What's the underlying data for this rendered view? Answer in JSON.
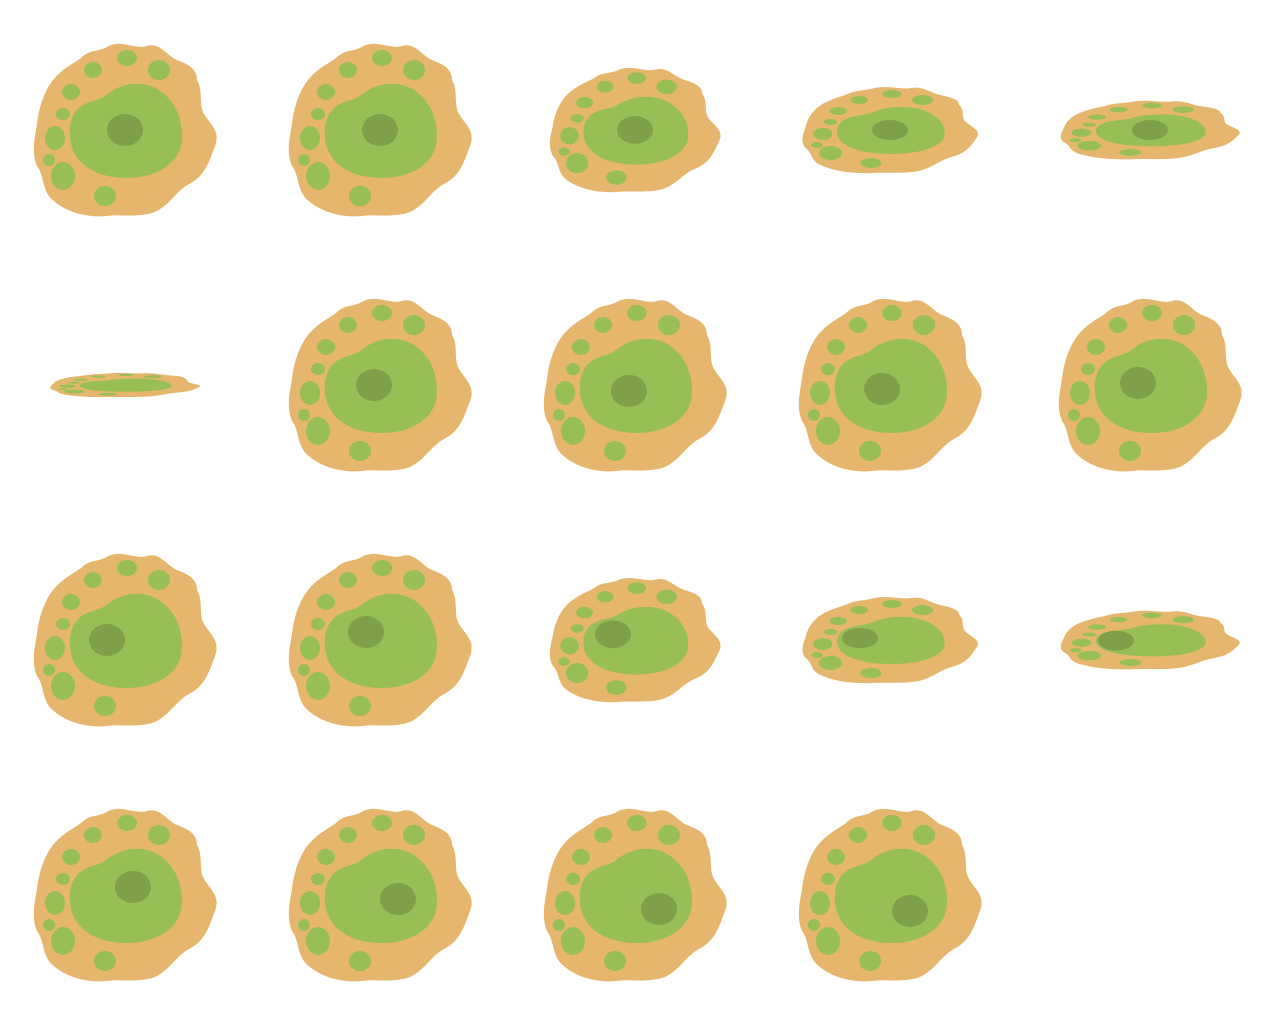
{
  "sprite_sheet": {
    "background_color": "#ffffff",
    "colors": {
      "membrane": "#e6b66e",
      "cytoplasm": "#98bf55",
      "organelle": "#98bf55",
      "nucleolus": "#7fa048"
    },
    "frame_count": 19,
    "frames": [
      {
        "row": 1,
        "shape": "round",
        "vertical_squash": 1.0,
        "nucleolus_offset": [
          0,
          0
        ]
      },
      {
        "row": 1,
        "shape": "round",
        "vertical_squash": 1.0,
        "nucleolus_offset": [
          0,
          0
        ]
      },
      {
        "row": 1,
        "shape": "flattened",
        "vertical_squash": 0.72,
        "nucleolus_offset": [
          0,
          0
        ]
      },
      {
        "row": 1,
        "shape": "flattened",
        "vertical_squash": 0.5,
        "nucleolus_offset": [
          0,
          0
        ]
      },
      {
        "row": 1,
        "shape": "flattened",
        "vertical_squash": 0.34,
        "nucleolus_offset": [
          0,
          0
        ]
      },
      {
        "row": 2,
        "shape": "flat-line",
        "vertical_squash": 0.14,
        "nucleolus_offset": [
          0,
          0
        ]
      },
      {
        "row": 2,
        "shape": "round",
        "vertical_squash": 1.0,
        "nucleolus_offset": [
          -6,
          0
        ]
      },
      {
        "row": 2,
        "shape": "round",
        "vertical_squash": 1.0,
        "nucleolus_offset": [
          -6,
          6
        ]
      },
      {
        "row": 2,
        "shape": "round",
        "vertical_squash": 1.0,
        "nucleolus_offset": [
          -8,
          4
        ]
      },
      {
        "row": 2,
        "shape": "round",
        "vertical_squash": 1.0,
        "nucleolus_offset": [
          -12,
          -2
        ]
      },
      {
        "row": 3,
        "shape": "round",
        "vertical_squash": 1.0,
        "nucleolus_offset": [
          -18,
          0
        ]
      },
      {
        "row": 3,
        "shape": "round",
        "vertical_squash": 1.0,
        "nucleolus_offset": [
          -14,
          -8
        ]
      },
      {
        "row": 3,
        "shape": "flattened",
        "vertical_squash": 0.72,
        "nucleolus_offset": [
          -22,
          -8
        ]
      },
      {
        "row": 3,
        "shape": "flattened",
        "vertical_squash": 0.5,
        "nucleolus_offset": [
          -30,
          -4
        ]
      },
      {
        "row": 3,
        "shape": "flattened",
        "vertical_squash": 0.34,
        "nucleolus_offset": [
          -34,
          2
        ]
      },
      {
        "row": 4,
        "shape": "round",
        "vertical_squash": 1.0,
        "nucleolus_offset": [
          8,
          -8
        ]
      },
      {
        "row": 4,
        "shape": "round",
        "vertical_squash": 1.0,
        "nucleolus_offset": [
          18,
          4
        ]
      },
      {
        "row": 4,
        "shape": "round",
        "vertical_squash": 1.0,
        "nucleolus_offset": [
          24,
          14
        ]
      },
      {
        "row": 4,
        "shape": "round",
        "vertical_squash": 1.0,
        "nucleolus_offset": [
          20,
          16
        ]
      }
    ]
  }
}
